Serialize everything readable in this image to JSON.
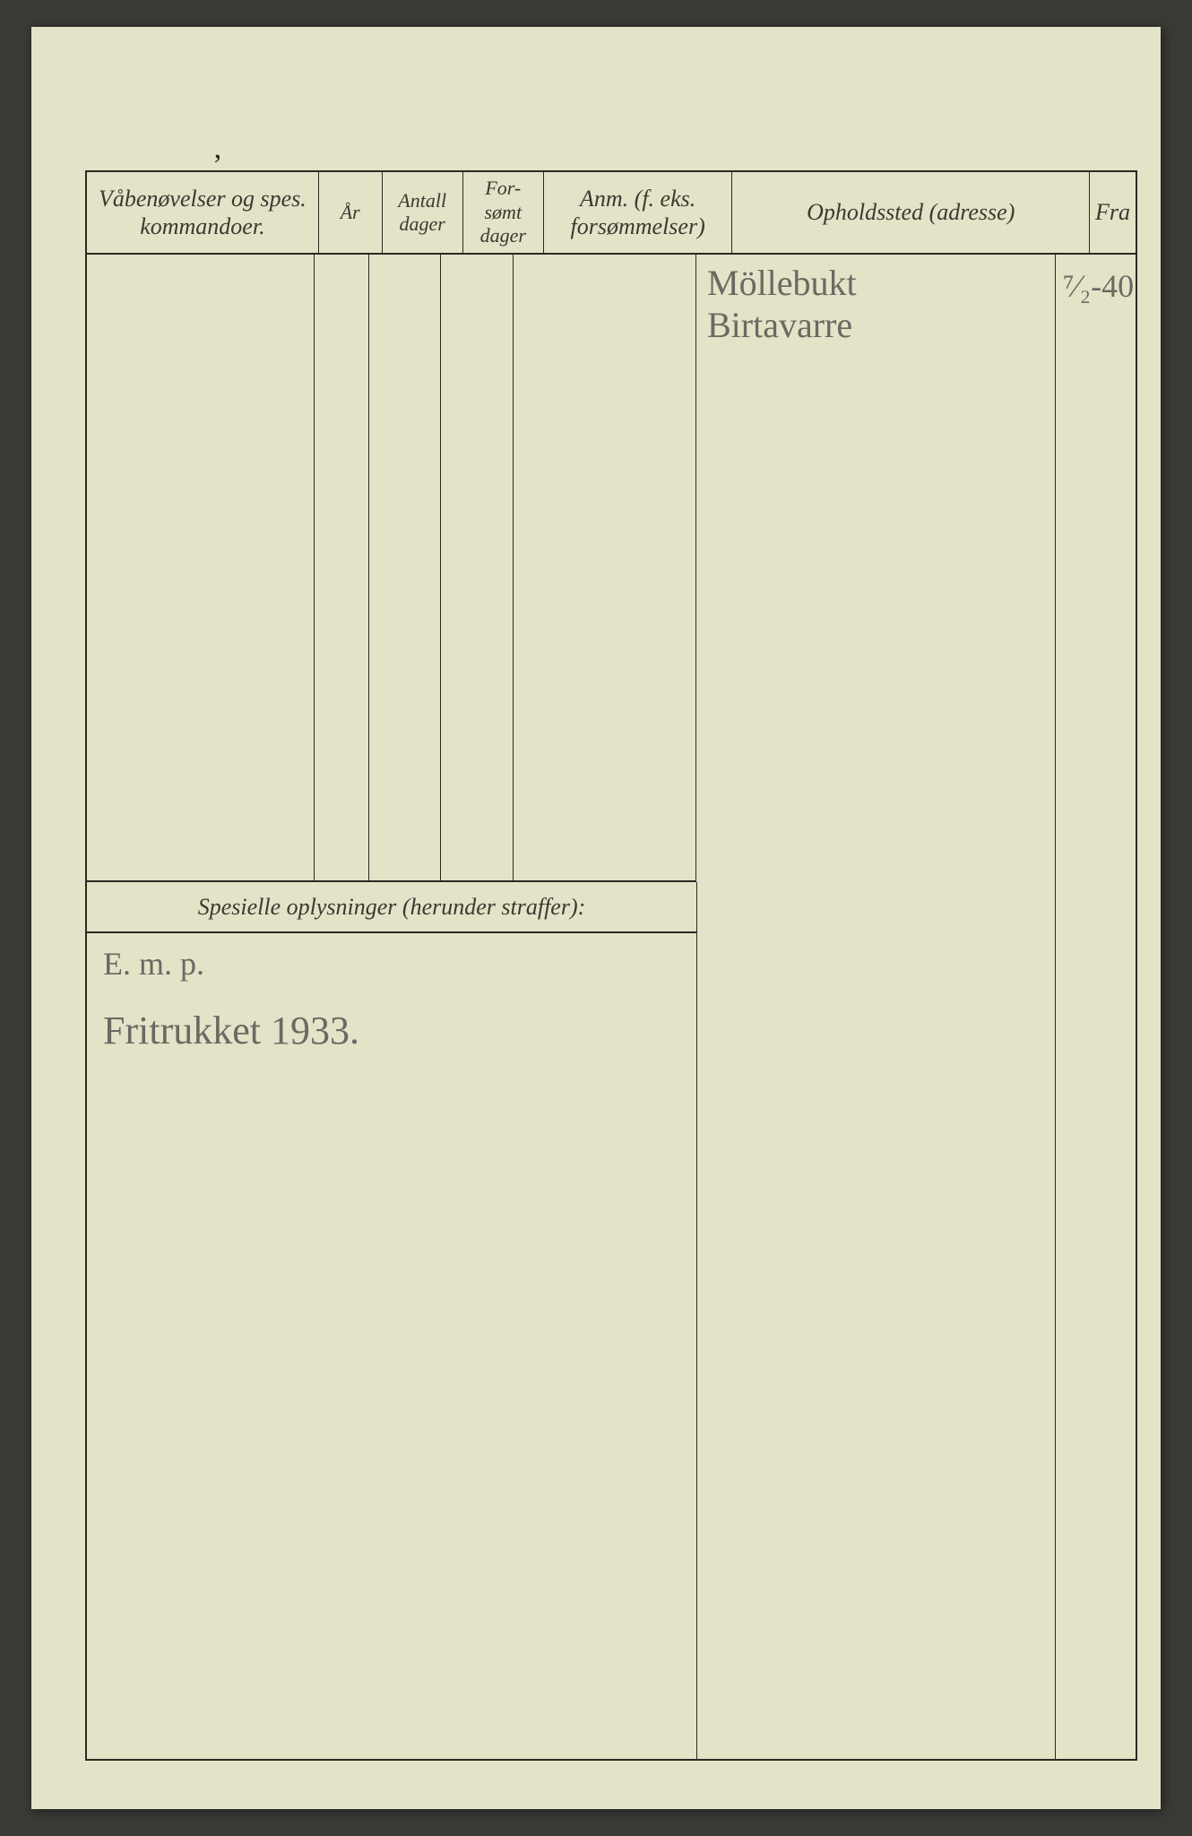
{
  "page": {
    "background_color": "#e3e3c8",
    "border_color": "#2a2a22",
    "handwriting_color": "#6a6a62",
    "header_text_color": "#3a3a30"
  },
  "headers": {
    "col1": "Våbenøvelser og spes. kommandoer.",
    "col2": "År",
    "col3": "Antall dager",
    "col4": "For-sømt dager",
    "col5": "Anm. (f. eks. forsømmelser)",
    "col6": "Opholdssted (adresse)",
    "col7": "Fra"
  },
  "spesielle_label": "Spesielle oplysninger (herunder straffer):",
  "entries": {
    "address_line1": "Möllebukt",
    "address_line2": "Birtavarre",
    "fra_value": "⁷⁄₂-40",
    "note_line1": "E. m. p.",
    "note_line2": "Fritrukket 1933."
  }
}
